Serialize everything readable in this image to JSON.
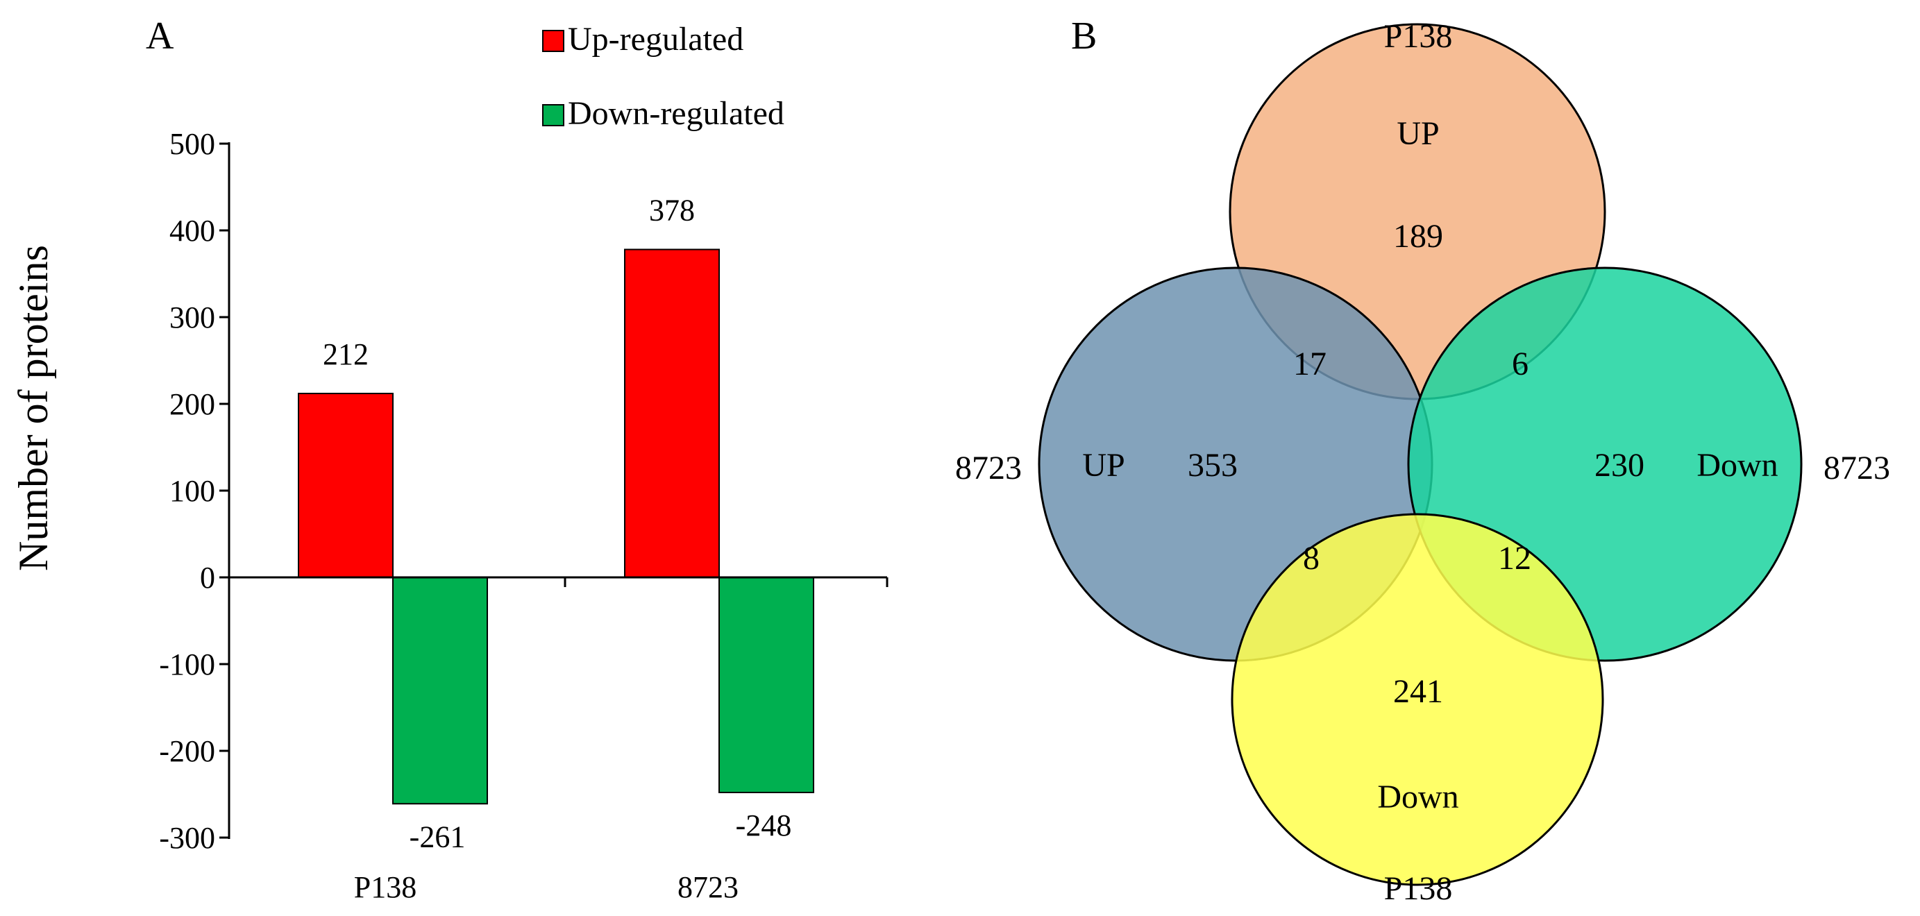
{
  "chart_data": [
    {
      "type": "bar",
      "panel": "A",
      "categories": [
        "P138",
        "8723"
      ],
      "series": [
        {
          "name": "Up-regulated",
          "color": "#ff0000",
          "values": [
            212,
            378
          ]
        },
        {
          "name": "Down-regulated",
          "color": "#00b050",
          "values": [
            -261,
            -248
          ]
        }
      ],
      "ylabel": "Number of proteins",
      "xlabel": "",
      "ylim": [
        -300,
        500
      ],
      "yticks": [
        500,
        400,
        300,
        200,
        100,
        0,
        -100,
        -200,
        -300
      ],
      "legend": "top-right"
    },
    {
      "type": "venn",
      "panel": "B",
      "sets": [
        {
          "name": "P138 UP",
          "group": "P138",
          "direction": "UP",
          "color": "#f4b183",
          "only": 189
        },
        {
          "name": "8723 UP",
          "group": "8723",
          "direction": "UP",
          "color": "#6f93b0",
          "only": 353
        },
        {
          "name": "8723 Down",
          "group": "8723",
          "direction": "Down",
          "color": "#1bd49f",
          "only": 230
        },
        {
          "name": "P138 Down",
          "group": "P138",
          "direction": "Down",
          "color": "#ffff4d",
          "only": 241
        }
      ],
      "intersections": {
        "p138up_8723up": 17,
        "p138up_8723down": 6,
        "p138down_8723up": 8,
        "p138down_8723down": 12
      }
    }
  ]
}
